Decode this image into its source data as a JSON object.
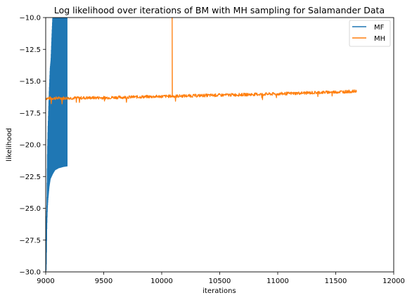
{
  "chart_data": {
    "type": "line",
    "title": "Log likelihood over iterations of BM with MH sampling for Salamander Data",
    "xlabel": "iterations",
    "ylabel": "likelihood",
    "xlim": [
      9000,
      12000
    ],
    "ylim": [
      -30,
      -10
    ],
    "xticks": [
      9000,
      9500,
      10000,
      10500,
      11000,
      11500,
      12000
    ],
    "yticks": [
      -30.0,
      -27.5,
      -25.0,
      -22.5,
      -20.0,
      -17.5,
      -15.0,
      -12.5,
      -10.0
    ],
    "xtick_labels": [
      "9000",
      "9500",
      "10000",
      "10500",
      "11000",
      "11500",
      "12000"
    ],
    "ytick_labels": [
      "−30.0",
      "−27.5",
      "−25.0",
      "−22.5",
      "−20.0",
      "−17.5",
      "−15.0",
      "−12.5",
      "−10.0"
    ],
    "grid": false,
    "legend_position": "top-right",
    "series": [
      {
        "name": "MF",
        "color": "#1f77b4",
        "x_start": 9000,
        "x_end": 9185,
        "upper_envelope": [
          [
            9000,
            -30.0
          ],
          [
            9005,
            -26.0
          ],
          [
            9010,
            -24.5
          ],
          [
            9015,
            -20.5
          ],
          [
            9020,
            -18.6
          ],
          [
            9030,
            -15.8
          ],
          [
            9038,
            -14.0
          ],
          [
            9045,
            -13.3
          ],
          [
            9055,
            -11.0
          ],
          [
            9060,
            -10.0
          ],
          [
            9185,
            -10.0
          ]
        ],
        "lower_envelope": [
          [
            9000,
            -30.0
          ],
          [
            9005,
            -29.8
          ],
          [
            9010,
            -26.5
          ],
          [
            9015,
            -25.0
          ],
          [
            9020,
            -24.3
          ],
          [
            9030,
            -23.3
          ],
          [
            9040,
            -22.7
          ],
          [
            9060,
            -22.3
          ],
          [
            9080,
            -22.0
          ],
          [
            9110,
            -21.85
          ],
          [
            9150,
            -21.75
          ],
          [
            9185,
            -21.7
          ]
        ]
      },
      {
        "name": "MH",
        "color": "#ff7f0e",
        "x_start": 9000,
        "x_end": 11680,
        "trend": [
          [
            9000,
            -16.35
          ],
          [
            9500,
            -16.3
          ],
          [
            10000,
            -16.2
          ],
          [
            10500,
            -16.1
          ],
          [
            11000,
            -16.0
          ],
          [
            11500,
            -15.85
          ],
          [
            11680,
            -15.8
          ]
        ],
        "noise_amplitude": 0.12,
        "spike": {
          "x": 10090,
          "y_top": -10.0
        }
      }
    ]
  }
}
